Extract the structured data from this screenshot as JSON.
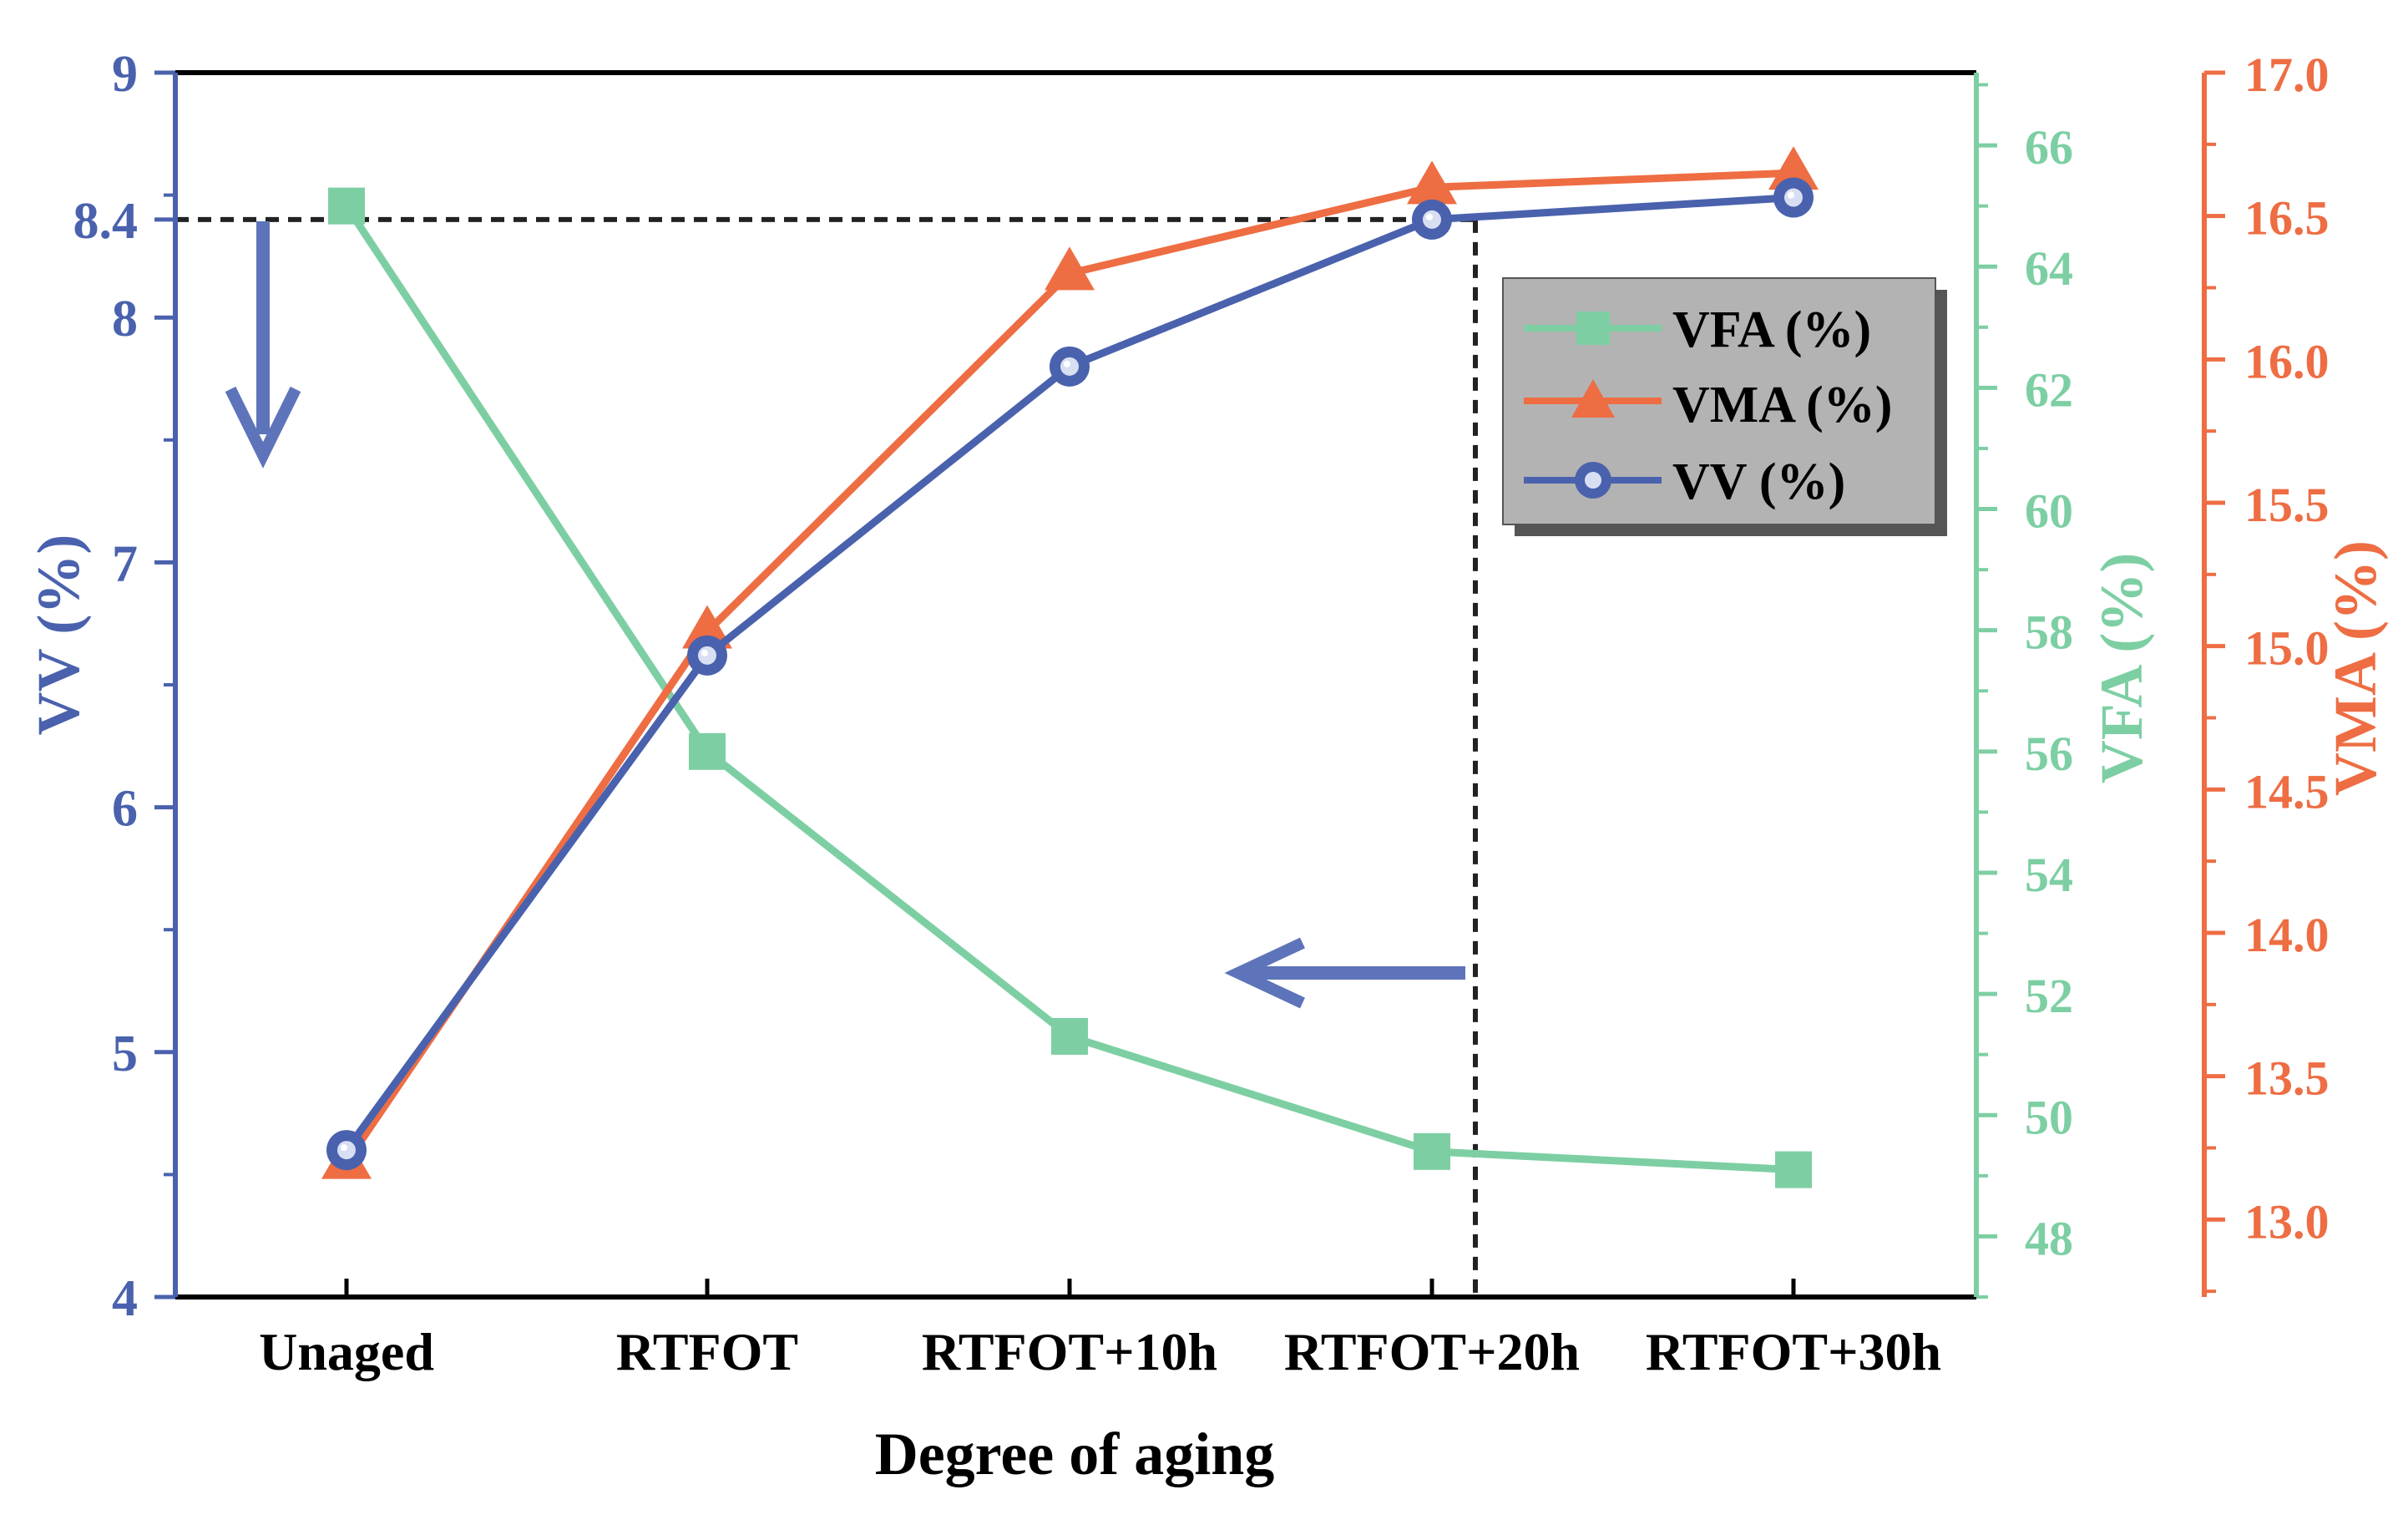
{
  "colors": {
    "vv": "#4a62ad",
    "vfa": "#7dcfa3",
    "vma": "#ee6d43",
    "axis": "#000000",
    "legend_bg": "#b3b3b3",
    "legend_shadow": "#555555"
  },
  "chart_data": {
    "type": "line",
    "title": "",
    "xlabel": "Degree of aging",
    "categories": [
      "Unaged",
      "RTFOT",
      "RTFOT+10h",
      "RTFOT+20h",
      "RTFOT+30h"
    ],
    "axes": {
      "vv": {
        "label": "VV (%)",
        "range": [
          4,
          9
        ],
        "ticks": [
          "4",
          "5",
          "6",
          "7",
          "8",
          "9"
        ],
        "ref_tick": "8.4",
        "ref_value": 8.4
      },
      "vfa": {
        "label": "VFA (%)",
        "range": [
          47,
          67.2
        ],
        "ticks": [
          "48",
          "50",
          "52",
          "54",
          "56",
          "58",
          "60",
          "62",
          "64",
          "66"
        ]
      },
      "vma": {
        "label": "VMA (%)",
        "range": [
          12.73,
          17.0
        ],
        "ticks": [
          "13.0",
          "13.5",
          "14.0",
          "14.5",
          "15.0",
          "15.5",
          "16.0",
          "16.5",
          "17.0"
        ]
      }
    },
    "series": [
      {
        "name": "VFA (%)",
        "key": "vfa",
        "marker": "square",
        "values": [
          65.0,
          56.0,
          51.3,
          49.4,
          49.1
        ]
      },
      {
        "name": "VMA (%)",
        "key": "vma",
        "marker": "triangle",
        "values": [
          13.2,
          15.05,
          16.3,
          16.6,
          16.65
        ]
      },
      {
        "name": "VV (%)",
        "key": "vv",
        "marker": "circle",
        "values": [
          4.6,
          6.62,
          7.8,
          8.4,
          8.49
        ]
      }
    ],
    "legend": {
      "position": "top-right",
      "entries": [
        "VFA (%)",
        "VMA (%)",
        "VV (%)"
      ]
    },
    "annotations": {
      "reference_line_value": 8.4,
      "reference_line_category": "RTFOT+20h",
      "arrows": [
        "down-arrow",
        "left-arrow"
      ]
    }
  }
}
